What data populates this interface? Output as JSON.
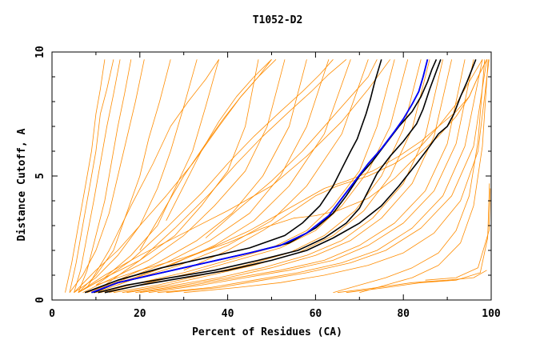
{
  "chart_data": {
    "type": "line",
    "title": "T1052-D2",
    "xlabel": "Percent of Residues (CA)",
    "ylabel": "Distance Cutoff, A",
    "xlim": [
      0,
      100
    ],
    "ylim": [
      0,
      10
    ],
    "x_tick_labels": [
      "0",
      "20",
      "40",
      "60",
      "80",
      "100"
    ],
    "y_tick_labels": [
      "0",
      "5",
      "10"
    ],
    "grid": false,
    "legend": "none",
    "colors": {
      "models": "#ff8c00",
      "highlight": "#000000",
      "best": "#0000ff"
    },
    "highlight_series": [
      {
        "x": [
          7.5,
          15,
          25,
          35,
          45,
          53,
          57,
          61,
          64,
          66,
          68,
          69.5,
          70.5,
          71.5,
          72.5,
          73.5,
          75
        ],
        "y": [
          0.3,
          0.8,
          1.3,
          1.7,
          2.1,
          2.6,
          3.1,
          3.8,
          4.6,
          5.3,
          6.0,
          6.5,
          7.0,
          7.5,
          8.1,
          8.8,
          9.7
        ]
      },
      {
        "x": [
          9,
          15,
          25,
          35,
          45,
          52,
          58,
          63,
          66,
          69,
          72,
          75,
          78,
          80,
          82,
          83.5,
          84.5,
          85.5
        ],
        "y": [
          0.3,
          0.7,
          1.1,
          1.5,
          1.9,
          2.2,
          2.7,
          3.4,
          4.1,
          4.8,
          5.5,
          6.1,
          6.8,
          7.3,
          7.9,
          8.4,
          9.0,
          9.7
        ]
      },
      {
        "x": [
          9.5,
          15,
          25,
          35,
          45,
          54,
          60,
          64,
          67,
          70,
          73,
          76,
          79,
          82,
          84,
          85.5,
          86.5,
          87.5
        ],
        "y": [
          0.3,
          0.7,
          1.1,
          1.5,
          1.9,
          2.3,
          2.9,
          3.5,
          4.2,
          5.0,
          5.6,
          6.3,
          7.0,
          7.6,
          8.2,
          8.8,
          9.3,
          9.7
        ]
      },
      {
        "x": [
          10.5,
          17,
          27,
          37,
          47,
          56,
          62,
          67,
          70,
          72,
          74,
          77,
          80,
          83,
          84.5,
          86,
          88.5
        ],
        "y": [
          0.3,
          0.6,
          0.9,
          1.2,
          1.6,
          2.0,
          2.5,
          3.1,
          3.7,
          4.4,
          5.1,
          5.8,
          6.4,
          7.1,
          7.7,
          8.5,
          9.7
        ]
      },
      {
        "x": [
          12,
          20,
          30,
          40,
          50,
          58,
          64,
          70,
          75,
          79,
          83,
          86,
          88,
          90,
          91.5,
          93,
          94.5,
          96.5
        ],
        "y": [
          0.3,
          0.6,
          0.9,
          1.2,
          1.6,
          2.0,
          2.5,
          3.1,
          3.8,
          4.6,
          5.5,
          6.2,
          6.7,
          7.0,
          7.5,
          8.2,
          8.8,
          9.7
        ]
      }
    ],
    "best_series": {
      "x": [
        9,
        15,
        25,
        35,
        45,
        52,
        58,
        63,
        66,
        69,
        72,
        75,
        78,
        80,
        82,
        83.5,
        84.5,
        85.5
      ],
      "y": [
        0.3,
        0.7,
        1.1,
        1.5,
        1.9,
        2.2,
        2.7,
        3.4,
        4.1,
        4.8,
        5.5,
        6.1,
        6.8,
        7.3,
        7.9,
        8.4,
        9.0,
        9.7
      ]
    },
    "orange_series": [
      {
        "x": [
          3,
          4.5,
          6,
          7.5,
          9,
          10,
          11,
          12
        ],
        "y": [
          0.3,
          1.5,
          3.0,
          4.5,
          6.0,
          7.5,
          8.5,
          9.7
        ]
      },
      {
        "x": [
          4,
          5.5,
          7,
          8.5,
          10,
          11,
          12.5,
          14
        ],
        "y": [
          0.3,
          1.5,
          3.0,
          4.5,
          6.0,
          7.5,
          8.5,
          9.7
        ]
      },
      {
        "x": [
          5,
          6.5,
          8,
          9.5,
          11,
          12.5,
          14,
          15.5
        ],
        "y": [
          0.3,
          1.2,
          2.6,
          4.0,
          5.5,
          7.0,
          8.3,
          9.7
        ]
      },
      {
        "x": [
          6,
          8,
          10,
          12,
          13.5,
          15,
          16.5,
          18
        ],
        "y": [
          0.3,
          1.2,
          2.6,
          4.0,
          5.5,
          7.0,
          8.3,
          9.7
        ]
      },
      {
        "x": [
          4,
          7,
          10,
          13,
          15,
          17,
          19,
          21
        ],
        "y": [
          0.3,
          1.0,
          2.0,
          3.5,
          5.0,
          6.5,
          8.0,
          9.7
        ]
      },
      {
        "x": [
          6,
          10,
          14,
          17,
          20,
          22,
          24.5,
          27
        ],
        "y": [
          0.3,
          1.0,
          2.0,
          3.5,
          5.0,
          6.5,
          8.0,
          9.7
        ]
      },
      {
        "x": [
          5,
          10,
          15,
          20,
          24,
          27,
          30,
          33
        ],
        "y": [
          0.3,
          0.9,
          1.8,
          3.0,
          4.5,
          6.0,
          7.8,
          9.7
        ]
      },
      {
        "x": [
          6,
          12,
          18,
          24,
          28,
          32,
          35,
          38
        ],
        "y": [
          0.3,
          0.9,
          1.8,
          3.0,
          4.5,
          6.0,
          7.8,
          9.7
        ]
      },
      {
        "x": [
          6,
          12,
          20,
          28,
          34,
          40,
          44,
          47
        ],
        "y": [
          0.3,
          0.9,
          1.6,
          2.6,
          3.8,
          5.2,
          7.0,
          9.7
        ]
      },
      {
        "x": [
          7,
          14,
          22,
          30,
          37,
          44,
          49,
          53
        ],
        "y": [
          0.3,
          0.9,
          1.6,
          2.6,
          3.8,
          5.2,
          7.0,
          9.7
        ]
      },
      {
        "x": [
          8,
          15,
          24,
          33,
          41,
          48,
          54,
          58
        ],
        "y": [
          0.3,
          0.8,
          1.5,
          2.4,
          3.5,
          5.0,
          7.0,
          9.7
        ]
      },
      {
        "x": [
          8,
          16,
          26,
          36,
          45,
          52,
          58,
          63
        ],
        "y": [
          0.3,
          0.8,
          1.5,
          2.4,
          3.5,
          5.0,
          7.0,
          9.7
        ]
      },
      {
        "x": [
          9,
          17,
          27,
          37,
          46,
          54,
          62,
          68
        ],
        "y": [
          0.3,
          0.8,
          1.4,
          2.2,
          3.2,
          4.6,
          6.7,
          9.7
        ]
      },
      {
        "x": [
          10,
          18,
          29,
          40,
          50,
          58,
          66,
          72
        ],
        "y": [
          0.3,
          0.8,
          1.4,
          2.2,
          3.2,
          4.6,
          6.7,
          9.7
        ]
      },
      {
        "x": [
          5,
          10,
          15,
          20,
          26,
          32,
          38,
          43,
          47,
          51
        ],
        "y": [
          0.3,
          1.2,
          2.0,
          3.0,
          4.2,
          5.5,
          7.0,
          8.2,
          9.0,
          9.7
        ]
      },
      {
        "x": [
          6,
          12,
          20,
          30,
          40,
          50,
          58,
          66,
          72,
          77
        ],
        "y": [
          0.3,
          1.0,
          1.8,
          2.7,
          3.6,
          4.6,
          5.8,
          7.2,
          8.5,
          9.7
        ]
      },
      {
        "x": [
          11,
          20,
          30,
          40,
          50,
          58,
          64,
          70,
          74,
          78
        ],
        "y": [
          0.3,
          0.7,
          1.1,
          1.6,
          2.1,
          2.8,
          3.8,
          5.2,
          7.0,
          9.7
        ]
      },
      {
        "x": [
          13,
          22,
          32,
          42,
          52,
          60,
          66,
          72,
          77,
          81
        ],
        "y": [
          0.3,
          0.7,
          1.1,
          1.6,
          2.1,
          2.8,
          3.8,
          5.2,
          7.0,
          9.7
        ]
      },
      {
        "x": [
          14,
          24,
          34,
          44,
          54,
          62,
          69,
          75,
          80,
          84
        ],
        "y": [
          0.3,
          0.6,
          1.0,
          1.4,
          1.9,
          2.6,
          3.6,
          5.0,
          6.9,
          9.7
        ]
      },
      {
        "x": [
          16,
          26,
          36,
          46,
          56,
          64,
          71,
          77,
          82,
          86
        ],
        "y": [
          0.3,
          0.6,
          1.0,
          1.4,
          1.9,
          2.6,
          3.6,
          5.0,
          6.9,
          9.7
        ]
      },
      {
        "x": [
          17,
          28,
          38,
          48,
          58,
          66,
          73,
          80,
          85,
          89
        ],
        "y": [
          0.3,
          0.6,
          0.9,
          1.3,
          1.8,
          2.4,
          3.3,
          4.7,
          6.6,
          9.7
        ]
      },
      {
        "x": [
          19,
          30,
          40,
          50,
          60,
          68,
          75,
          82,
          87,
          91
        ],
        "y": [
          0.3,
          0.6,
          0.9,
          1.3,
          1.8,
          2.4,
          3.3,
          4.7,
          6.6,
          9.7
        ]
      },
      {
        "x": [
          20,
          32,
          42,
          52,
          62,
          70,
          78,
          85,
          90,
          94
        ],
        "y": [
          0.3,
          0.6,
          0.9,
          1.2,
          1.6,
          2.2,
          3.1,
          4.4,
          6.3,
          9.7
        ]
      },
      {
        "x": [
          22,
          34,
          44,
          54,
          64,
          72,
          80,
          87,
          92,
          96
        ],
        "y": [
          0.3,
          0.6,
          0.9,
          1.2,
          1.6,
          2.2,
          3.1,
          4.4,
          6.3,
          9.7
        ]
      },
      {
        "x": [
          24,
          36,
          46,
          56,
          66,
          74,
          82,
          89,
          94,
          98
        ],
        "y": [
          0.3,
          0.5,
          0.8,
          1.1,
          1.5,
          2.0,
          2.9,
          4.2,
          6.2,
          9.7
        ]
      },
      {
        "x": [
          26,
          38,
          48,
          58,
          68,
          76,
          84,
          91,
          96,
          99
        ],
        "y": [
          0.3,
          0.5,
          0.8,
          1.1,
          1.5,
          2.0,
          2.9,
          4.2,
          6.2,
          9.7
        ]
      },
      {
        "x": [
          30,
          42,
          52,
          62,
          72,
          80,
          87,
          93,
          97,
          99.5
        ],
        "y": [
          0.3,
          0.5,
          0.7,
          1.0,
          1.4,
          1.9,
          2.7,
          4.0,
          6.0,
          9.7
        ]
      },
      {
        "x": [
          10,
          20,
          30,
          40,
          48,
          55,
          60,
          65,
          72,
          78,
          83,
          88,
          92,
          95,
          97,
          99
        ],
        "y": [
          0.6,
          1.2,
          1.7,
          2.3,
          2.9,
          3.3,
          3.4,
          3.6,
          4.1,
          4.9,
          5.8,
          6.6,
          7.4,
          8.2,
          9.0,
          9.7
        ]
      },
      {
        "x": [
          15,
          25,
          35,
          45,
          53,
          58,
          62,
          67,
          73,
          79,
          84,
          88,
          92,
          95,
          97,
          99
        ],
        "y": [
          0.6,
          1.3,
          2.0,
          2.8,
          3.6,
          4.1,
          4.5,
          4.8,
          5.2,
          5.8,
          6.4,
          7.0,
          7.6,
          8.2,
          9.0,
          9.7
        ]
      },
      {
        "x": [
          30,
          40,
          48,
          55,
          60,
          65,
          72,
          78,
          84,
          88,
          92,
          95,
          98
        ],
        "y": [
          1.2,
          2.0,
          2.8,
          3.6,
          4.2,
          4.6,
          5.0,
          5.5,
          6.2,
          7.0,
          7.9,
          8.8,
          9.7
        ]
      },
      {
        "x": [
          10,
          18,
          26,
          34,
          40,
          46,
          52,
          57,
          61,
          64
        ],
        "y": [
          0.6,
          1.6,
          2.9,
          4.3,
          5.5,
          6.6,
          7.6,
          8.4,
          9.1,
          9.7
        ]
      },
      {
        "x": [
          12,
          20,
          28,
          36,
          42,
          48,
          54,
          59,
          63,
          67
        ],
        "y": [
          0.6,
          1.6,
          2.9,
          4.3,
          5.5,
          6.6,
          7.6,
          8.4,
          9.1,
          9.7
        ]
      },
      {
        "x": [
          8,
          13,
          18,
          23,
          27,
          31,
          35,
          38
        ],
        "y": [
          0.5,
          2.0,
          3.8,
          5.5,
          7.0,
          8.0,
          8.9,
          9.7
        ]
      },
      {
        "x": [
          20,
          25,
          30,
          35,
          39,
          43,
          47,
          50
        ],
        "y": [
          2.0,
          3.5,
          5.0,
          6.3,
          7.3,
          8.2,
          9.0,
          9.7
        ]
      },
      {
        "x": [
          35,
          42,
          50,
          57,
          63,
          68,
          72,
          74
        ],
        "y": [
          2.5,
          3.6,
          4.8,
          6.0,
          7.2,
          8.2,
          9.0,
          9.7
        ]
      },
      {
        "x": [
          26,
          30,
          34,
          38,
          42,
          46,
          50
        ],
        "y": [
          3.2,
          4.6,
          6.0,
          7.2,
          8.2,
          9.0,
          9.7
        ]
      },
      {
        "x": [
          64,
          70,
          76,
          82,
          88,
          92,
          95,
          97,
          98.5
        ],
        "y": [
          0.3,
          0.6,
          0.9,
          1.3,
          1.9,
          2.8,
          4.2,
          6.4,
          9.7
        ]
      },
      {
        "x": [
          70,
          76,
          82,
          88,
          93,
          96,
          98,
          99.3
        ],
        "y": [
          0.3,
          0.6,
          0.9,
          1.4,
          2.3,
          3.8,
          6.2,
          9.7
        ]
      },
      {
        "x": [
          65,
          74,
          82,
          90,
          96,
          99
        ],
        "y": [
          0.3,
          0.5,
          0.7,
          0.8,
          0.9,
          1.2
        ]
      },
      {
        "x": [
          67,
          76,
          84,
          92,
          97.5,
          99.2,
          99.6
        ],
        "y": [
          0.3,
          0.5,
          0.7,
          0.8,
          1.1,
          2.5,
          4.7
        ]
      },
      {
        "x": [
          85,
          92,
          97,
          99.5,
          99.8
        ],
        "y": [
          0.8,
          0.9,
          1.3,
          2.8,
          4.5
        ]
      }
    ]
  }
}
